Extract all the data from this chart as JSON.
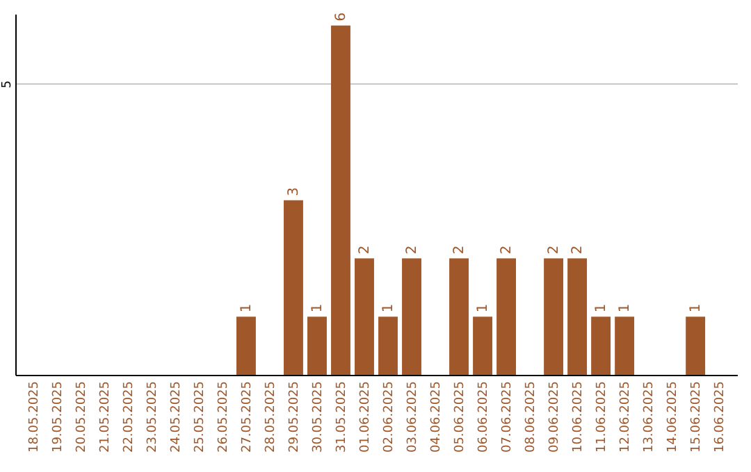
{
  "chart_data": {
    "type": "bar",
    "categories": [
      "18.05.2025",
      "19.05.2025",
      "20.05.2025",
      "21.05.2025",
      "22.05.2025",
      "23.05.2025",
      "24.05.2025",
      "25.05.2025",
      "26.05.2025",
      "27.05.2025",
      "28.05.2025",
      "29.05.2025",
      "30.05.2025",
      "31.05.2025",
      "01.06.2025",
      "02.06.2025",
      "03.06.2025",
      "04.06.2025",
      "05.06.2025",
      "06.06.2025",
      "07.06.2025",
      "08.06.2025",
      "09.06.2025",
      "10.06.2025",
      "11.06.2025",
      "12.06.2025",
      "13.06.2025",
      "14.06.2025",
      "15.06.2025",
      "16.06.2025"
    ],
    "values": [
      0,
      0,
      0,
      0,
      0,
      0,
      0,
      0,
      0,
      1,
      0,
      3,
      1,
      6,
      2,
      1,
      2,
      0,
      2,
      1,
      2,
      0,
      2,
      2,
      1,
      1,
      0,
      0,
      1,
      0
    ],
    "value_labels": [
      null,
      null,
      null,
      null,
      null,
      null,
      null,
      null,
      null,
      "1",
      null,
      "3",
      "1",
      "6",
      "2",
      "1",
      "2",
      null,
      "2",
      "1",
      "2",
      null,
      "2",
      "2",
      "1",
      "1",
      null,
      null,
      "1",
      null
    ],
    "color": "#a0572a",
    "ylim": [
      0,
      6.2
    ],
    "yticks": [
      5
    ],
    "grid": "y"
  }
}
